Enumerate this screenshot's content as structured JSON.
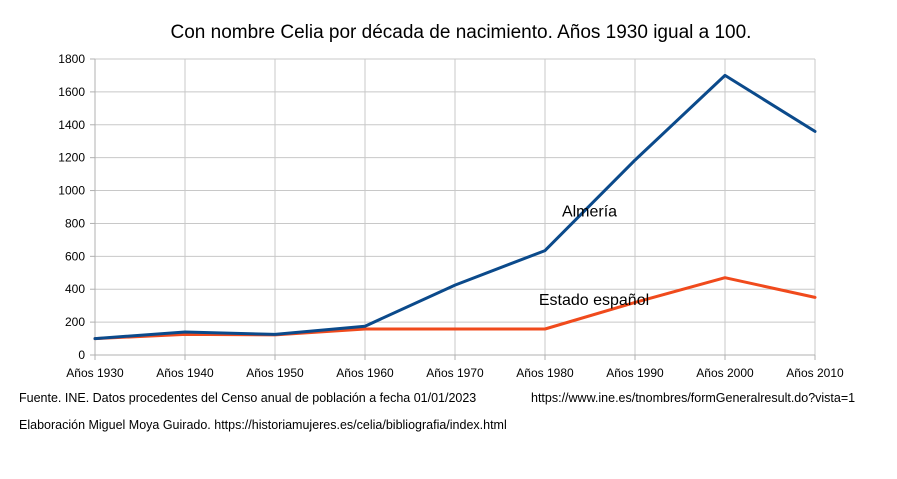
{
  "chart_data": {
    "type": "line",
    "title": "Con nombre Celia por década de nacimiento.  Años 1930 igual a 100.",
    "categories": [
      "Años 1930",
      "Años 1940",
      "Años 1950",
      "Años 1960",
      "Años 1970",
      "Años 1980",
      "Años 1990",
      "Años 2000",
      "Años 2010"
    ],
    "series": [
      {
        "name": "Almería",
        "color": "#0b4a8b",
        "values": [
          100,
          140,
          125,
          175,
          425,
          635,
          1185,
          1700,
          1360
        ]
      },
      {
        "name": "Estado español",
        "color": "#f04a1c",
        "values": [
          100,
          125,
          122,
          158,
          158,
          158,
          320,
          470,
          350
        ]
      }
    ],
    "ylim": [
      0,
      1800
    ],
    "yticks": [
      0,
      200,
      400,
      600,
      800,
      1000,
      1200,
      1400,
      1600,
      1800
    ],
    "grid": true,
    "legend": "inline labels"
  },
  "footnotes": {
    "source": "Fuente. INE.  Datos procedentes del Censo anual de población a fecha 01/01/2023",
    "source_url": "https://www.ine.es/tnombres/formGeneralresult.do?vista=1",
    "author": "Elaboración Miguel Moya Guirado. https://historiamujeres.es/celia/bibliografia/index.html"
  }
}
